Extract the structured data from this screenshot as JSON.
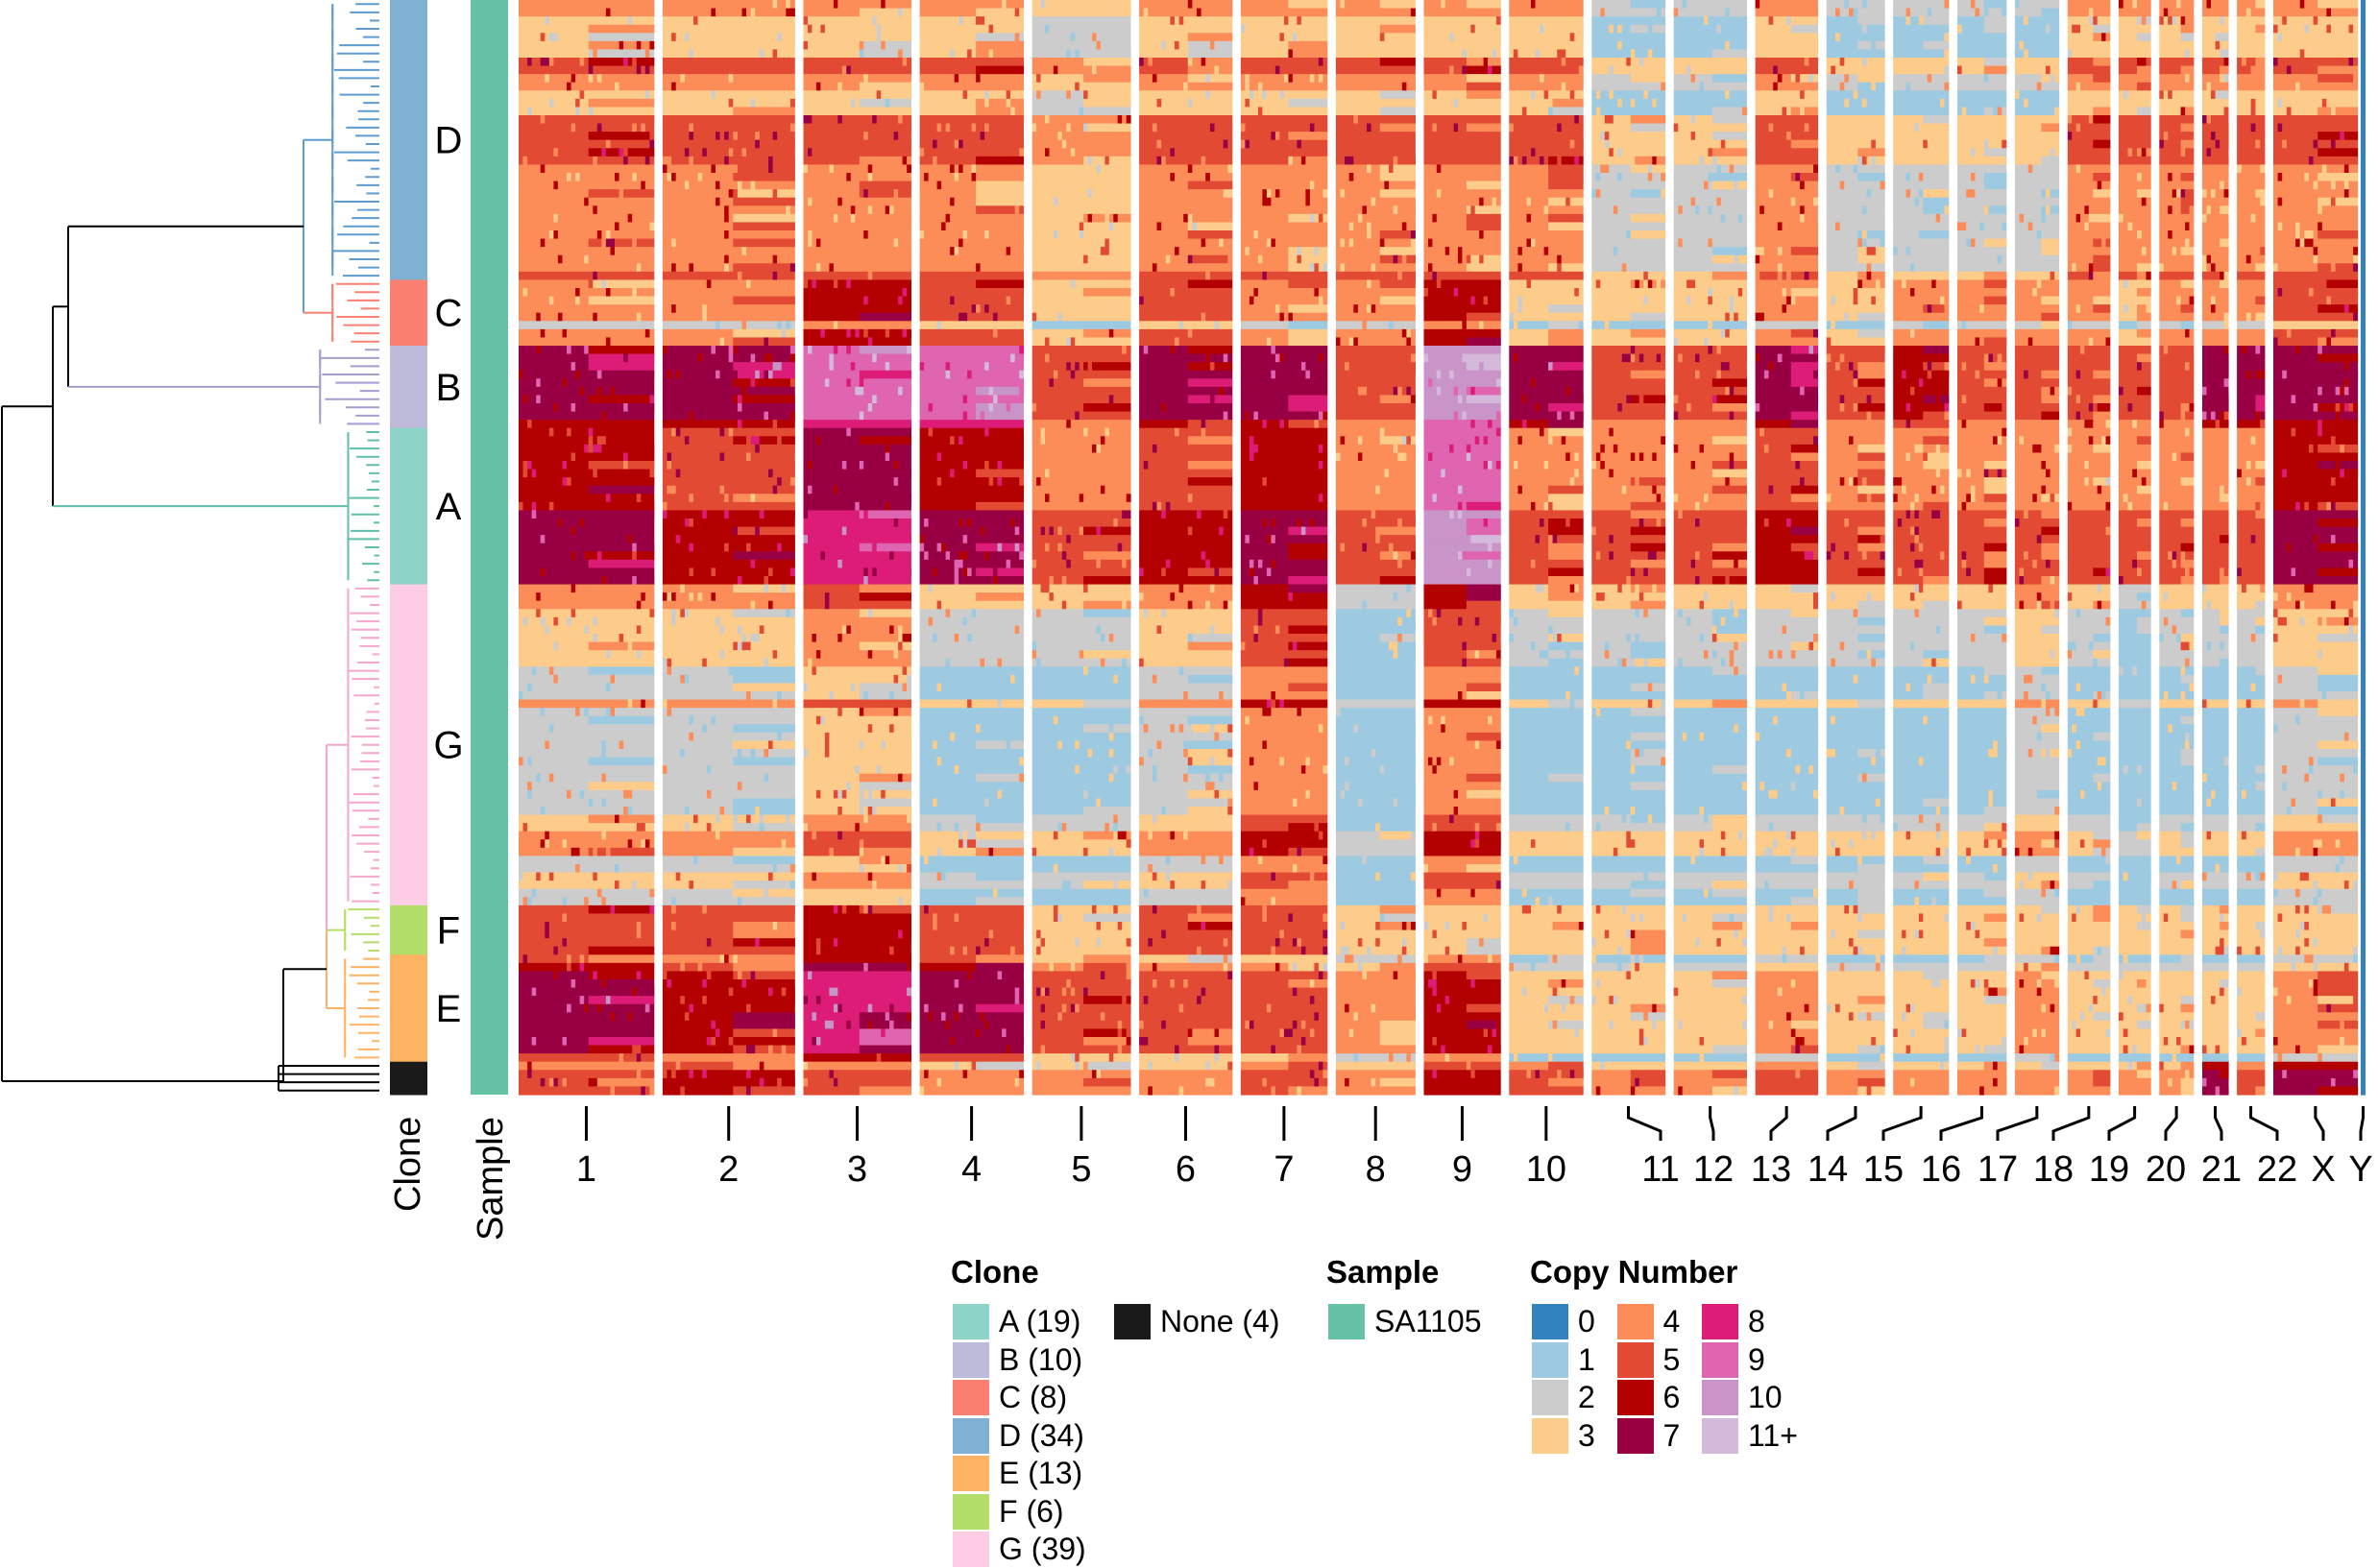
{
  "chart_data": {
    "type": "heatmap",
    "title": "",
    "xlabel": "",
    "ylabel": "",
    "row_annotations": [
      {
        "name": "Clone",
        "label": "Clone"
      },
      {
        "name": "Sample",
        "label": "Sample"
      }
    ],
    "chromosomes": [
      "1",
      "2",
      "3",
      "4",
      "5",
      "6",
      "7",
      "8",
      "9",
      "10",
      "11",
      "12",
      "13",
      "14",
      "15",
      "16",
      "17",
      "18",
      "19",
      "20",
      "21",
      "22",
      "X",
      "Y"
    ],
    "clone_order": [
      "D",
      "C",
      "B",
      "A",
      "G",
      "F",
      "E",
      "None"
    ],
    "clones": [
      {
        "id": "A",
        "label": "A",
        "count": 19,
        "legend": "A (19)",
        "color": "#8dd3c7"
      },
      {
        "id": "B",
        "label": "B",
        "count": 10,
        "legend": "B (10)",
        "color": "#bebada"
      },
      {
        "id": "C",
        "label": "C",
        "count": 8,
        "legend": "C (8)",
        "color": "#fb8072"
      },
      {
        "id": "D",
        "label": "D",
        "count": 34,
        "legend": "D (34)",
        "color": "#80b1d3"
      },
      {
        "id": "E",
        "label": "E",
        "count": 13,
        "legend": "E (13)",
        "color": "#fdb462"
      },
      {
        "id": "F",
        "label": "F",
        "count": 6,
        "legend": "F (6)",
        "color": "#b3de69"
      },
      {
        "id": "G",
        "label": "G",
        "count": 39,
        "legend": "G (39)",
        "color": "#fccde5"
      },
      {
        "id": "None",
        "label": "",
        "count": 4,
        "legend": "None (4)",
        "color": "#1a1a1a"
      }
    ],
    "samples": [
      {
        "name": "SA1105",
        "color": "#66c2a5"
      }
    ],
    "copy_number_states": [
      {
        "label": "0",
        "color": "#3182bd"
      },
      {
        "label": "1",
        "color": "#9ecae1"
      },
      {
        "label": "2",
        "color": "#cccccc"
      },
      {
        "label": "3",
        "color": "#fdcc8a"
      },
      {
        "label": "4",
        "color": "#fc8d59"
      },
      {
        "label": "5",
        "color": "#e34a33"
      },
      {
        "label": "6",
        "color": "#b30000"
      },
      {
        "label": "7",
        "color": "#980043"
      },
      {
        "label": "8",
        "color": "#dd1c77"
      },
      {
        "label": "9",
        "color": "#df65b0"
      },
      {
        "label": "10",
        "color": "#c994c7"
      },
      {
        "label": "11+",
        "color": "#d4b9da"
      }
    ],
    "approx_dominant_copy_number_by_clone": {
      "D": [
        4,
        4,
        4,
        4,
        3,
        4,
        4,
        4,
        4,
        4,
        2,
        2,
        4,
        2,
        2,
        2,
        2,
        4,
        4,
        4,
        4,
        4,
        4,
        0
      ],
      "C": [
        3,
        3,
        5,
        4,
        2,
        4,
        3,
        3,
        5,
        2,
        2,
        2,
        3,
        2,
        3,
        3,
        3,
        3,
        2,
        3,
        3,
        3,
        4,
        0
      ],
      "B": [
        6,
        6,
        8,
        8,
        4,
        6,
        6,
        4,
        9,
        6,
        4,
        4,
        6,
        4,
        5,
        4,
        4,
        4,
        4,
        4,
        6,
        6,
        6,
        0
      ],
      "A": [
        6,
        5,
        7,
        6,
        4,
        5,
        6,
        4,
        9,
        4,
        4,
        4,
        5,
        4,
        4,
        4,
        4,
        4,
        4,
        4,
        4,
        4,
        6,
        0
      ],
      "G": [
        3,
        3,
        4,
        2,
        2,
        3,
        5,
        1,
        5,
        2,
        2,
        2,
        2,
        2,
        2,
        2,
        3,
        2,
        1,
        2,
        2,
        2,
        3,
        0
      ],
      "F": [
        6,
        6,
        7,
        6,
        4,
        6,
        6,
        4,
        4,
        4,
        4,
        4,
        4,
        4,
        4,
        4,
        4,
        4,
        4,
        4,
        4,
        4,
        4,
        0
      ],
      "E": [
        6,
        5,
        7,
        6,
        4,
        4,
        4,
        3,
        5,
        2,
        2,
        2,
        3,
        2,
        2,
        2,
        3,
        2,
        2,
        2,
        2,
        2,
        3,
        0
      ],
      "None": [
        5,
        6,
        5,
        4,
        4,
        4,
        5,
        4,
        6,
        5,
        4,
        4,
        5,
        4,
        4,
        4,
        4,
        4,
        4,
        4,
        7,
        5,
        7,
        0
      ]
    },
    "legend_placement": "bottom"
  },
  "legend": {
    "clone_title": "Clone",
    "sample_title": "Sample",
    "cn_title": "Copy Number"
  },
  "axis_labels": {
    "clone": "Clone",
    "sample": "Sample"
  }
}
